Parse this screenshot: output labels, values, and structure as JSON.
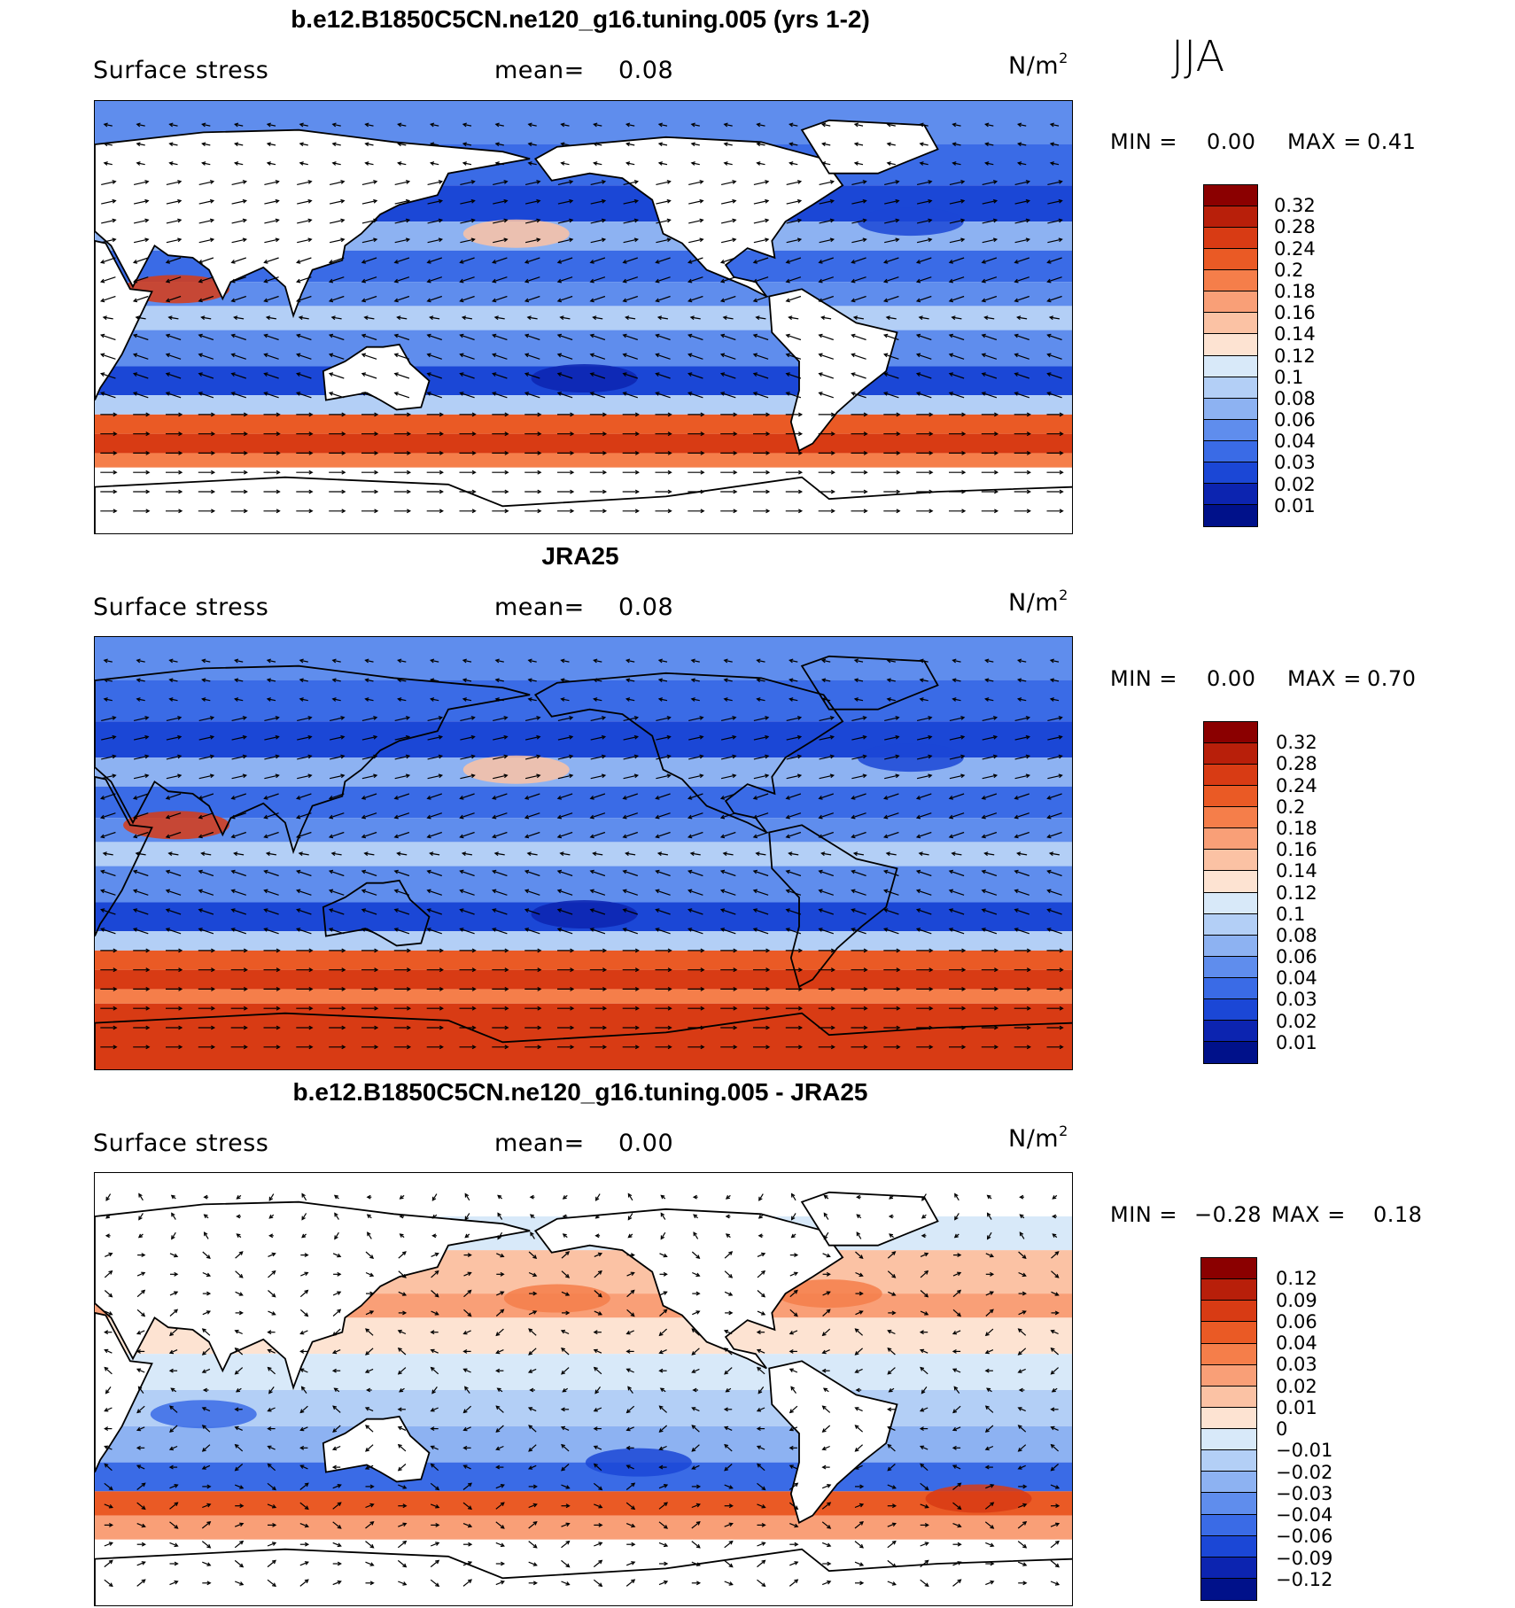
{
  "season": "JJA",
  "panels": [
    {
      "title": "b.e12.B1850C5CN.ne120_g16.tuning.005 (yrs 1-2)",
      "variable": "Surface stress",
      "mean_label": "mean=",
      "mean_value": "0.08",
      "unit": "N/m",
      "unit_exp": "2",
      "min_label": "MIN =",
      "min_value": "0.00",
      "max_label": "MAX =",
      "max_value": "0.41",
      "colorbar": {
        "labels": [
          "0.32",
          "0.28",
          "0.24",
          "0.2",
          "0.18",
          "0.16",
          "0.14",
          "0.12",
          "0.1",
          "0.08",
          "0.06",
          "0.04",
          "0.03",
          "0.02",
          "0.01"
        ],
        "colors": [
          "#8b0000",
          "#b81f0a",
          "#d83b14",
          "#ea5a25",
          "#f57e4a",
          "#f99f77",
          "#fbc2a4",
          "#fde3d2",
          "#d8e9f9",
          "#b3cff6",
          "#8db2f2",
          "#5f8ded",
          "#3a6be6",
          "#1b47d6",
          "#0c24b0",
          "#00118a"
        ]
      }
    },
    {
      "title": "JRA25",
      "variable": "Surface stress",
      "mean_label": "mean=",
      "mean_value": "0.08",
      "unit": "N/m",
      "unit_exp": "2",
      "min_label": "MIN =",
      "min_value": "0.00",
      "max_label": "MAX =",
      "max_value": "0.70",
      "colorbar": {
        "labels": [
          "0.32",
          "0.28",
          "0.24",
          "0.2",
          "0.18",
          "0.16",
          "0.14",
          "0.12",
          "0.1",
          "0.08",
          "0.06",
          "0.04",
          "0.03",
          "0.02",
          "0.01"
        ],
        "colors": [
          "#8b0000",
          "#b81f0a",
          "#d83b14",
          "#ea5a25",
          "#f57e4a",
          "#f99f77",
          "#fbc2a4",
          "#fde3d2",
          "#d8e9f9",
          "#b3cff6",
          "#8db2f2",
          "#5f8ded",
          "#3a6be6",
          "#1b47d6",
          "#0c24b0",
          "#00118a"
        ]
      }
    },
    {
      "title": "b.e12.B1850C5CN.ne120_g16.tuning.005 - JRA25",
      "variable": "Surface stress",
      "mean_label": "mean=",
      "mean_value": "0.00",
      "unit": "N/m",
      "unit_exp": "2",
      "min_label": "MIN =",
      "min_value": "−0.28",
      "max_label": "MAX =",
      "max_value": "0.18",
      "colorbar": {
        "labels": [
          "0.12",
          "0.09",
          "0.06",
          "0.04",
          "0.03",
          "0.02",
          "0.01",
          "0",
          "−0.01",
          "−0.02",
          "−0.03",
          "−0.04",
          "−0.06",
          "−0.09",
          "−0.12"
        ],
        "colors": [
          "#8b0000",
          "#b81f0a",
          "#d83b14",
          "#ea5a25",
          "#f57e4a",
          "#f99f77",
          "#fbc2a4",
          "#fde3d2",
          "#d8e9f9",
          "#b3cff6",
          "#8db2f2",
          "#5f8ded",
          "#3a6be6",
          "#1b47d6",
          "#0c24b0",
          "#00118a"
        ]
      }
    }
  ]
}
